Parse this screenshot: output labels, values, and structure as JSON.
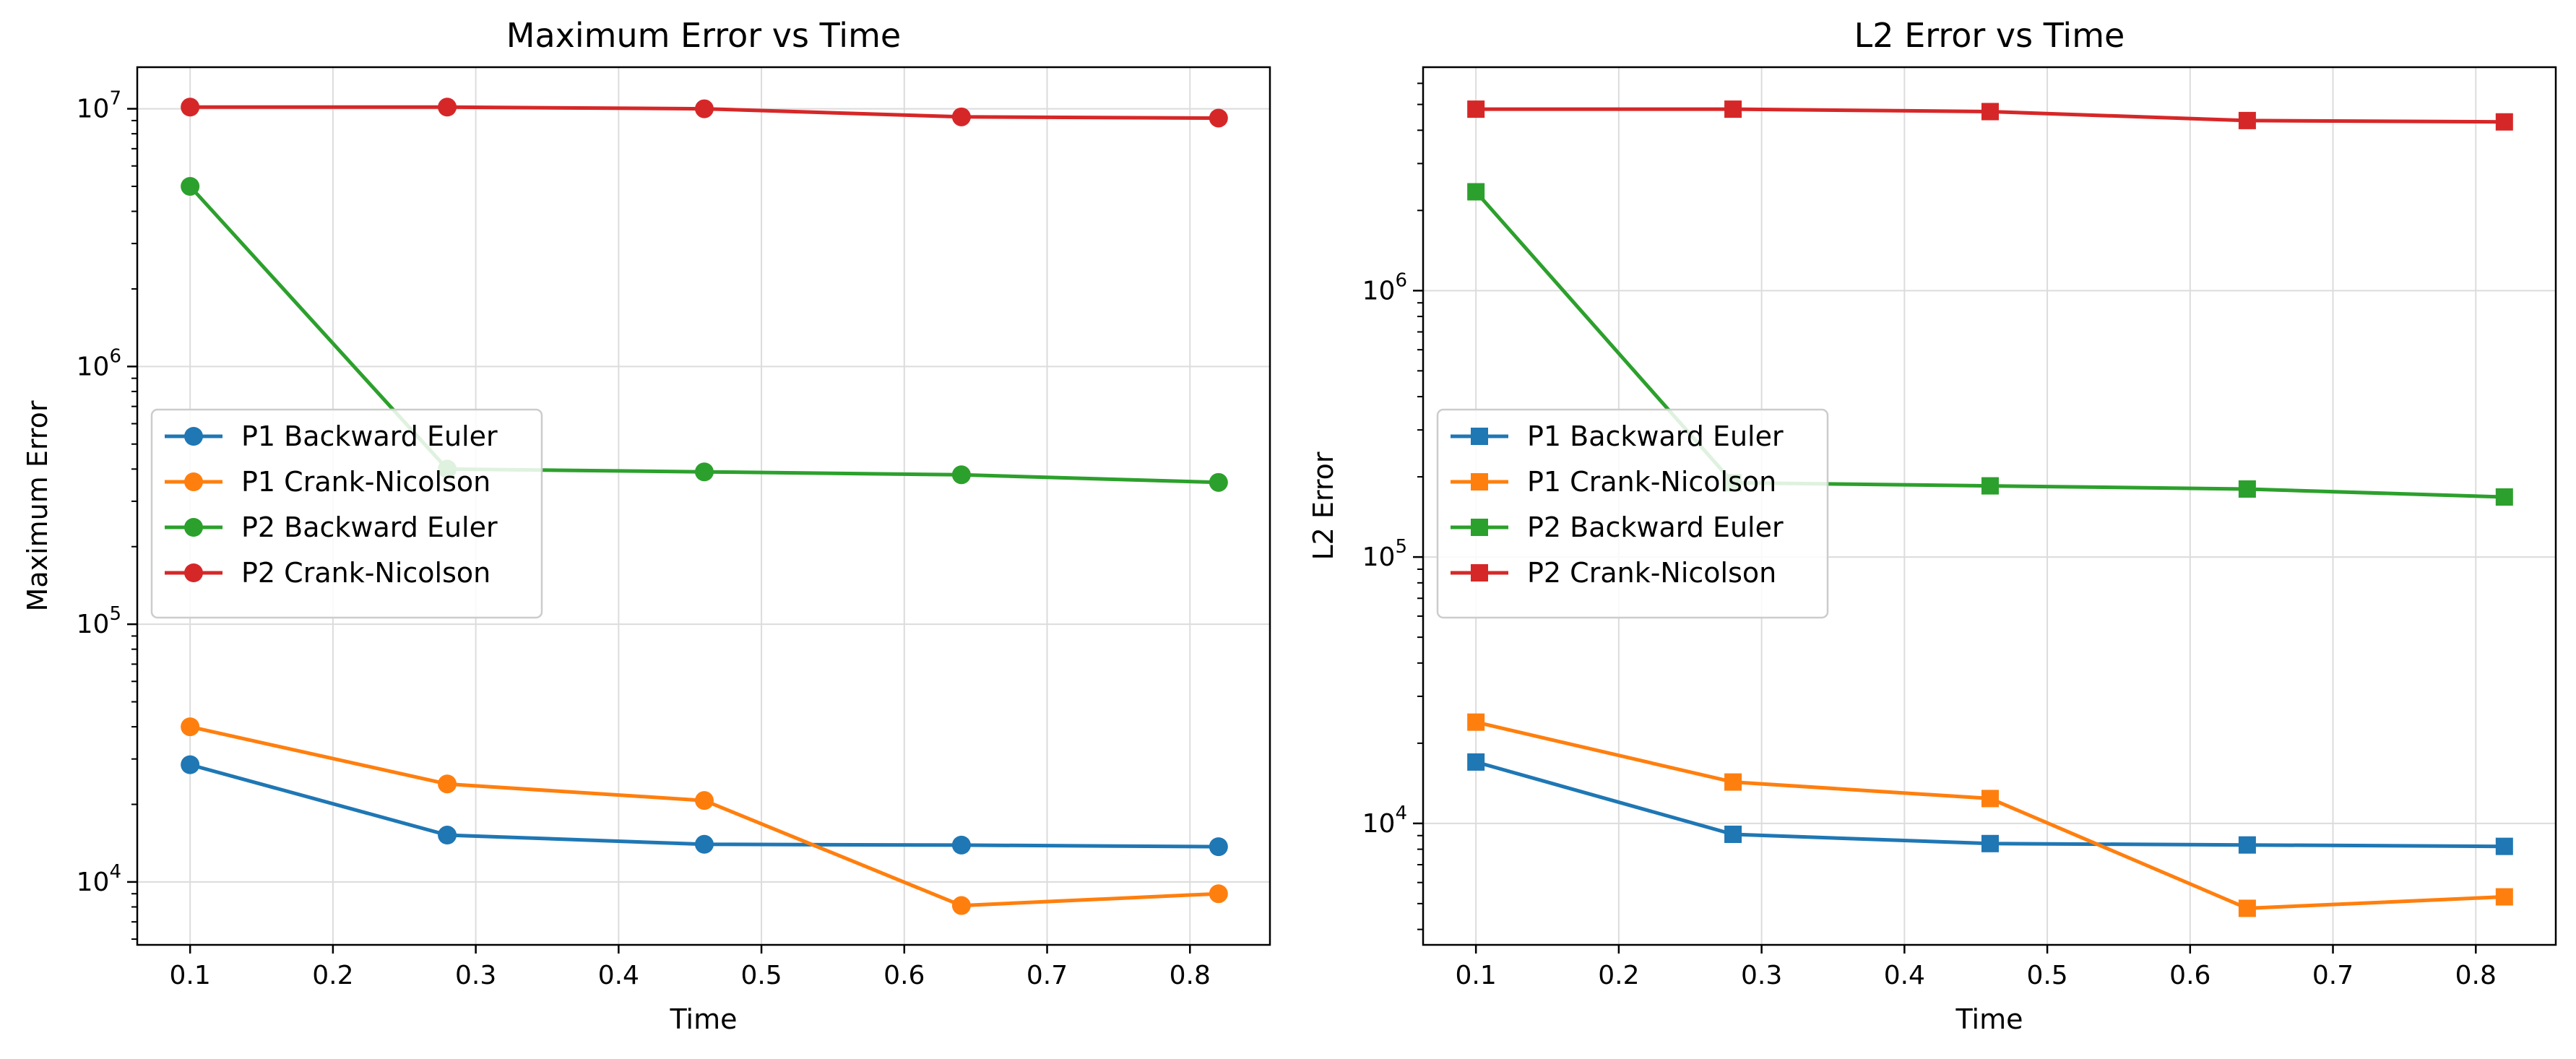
{
  "chart_data": [
    {
      "type": "line",
      "title": "Maximum Error vs Time",
      "xlabel": "Time",
      "ylabel": "Maximum Error",
      "yscale": "log",
      "xlim": [
        0.063,
        0.856
      ],
      "ylim": [
        5700,
        14500000
      ],
      "xticks": [
        "0.1",
        "0.2",
        "0.3",
        "0.4",
        "0.5",
        "0.6",
        "0.7",
        "0.8"
      ],
      "ymajor_ticks": [
        {
          "exp": "4",
          "value": 10000
        },
        {
          "exp": "5",
          "value": 100000
        },
        {
          "exp": "6",
          "value": 1000000
        },
        {
          "exp": "7",
          "value": 10000000
        }
      ],
      "grid": true,
      "legend_position": "center-left",
      "marker": "circle",
      "x": [
        0.1,
        0.28,
        0.46,
        0.64,
        0.82
      ],
      "series": [
        {
          "name": "P1 Backward Euler",
          "color": "#1f77b4",
          "values": [
            28500,
            15200,
            14000,
            13900,
            13700
          ]
        },
        {
          "name": "P1 Crank-Nicolson",
          "color": "#ff7f0e",
          "values": [
            40000,
            24000,
            20700,
            8100,
            9000
          ]
        },
        {
          "name": "P2 Backward Euler",
          "color": "#2ca02c",
          "values": [
            5000000,
            400000,
            390000,
            380000,
            355000
          ]
        },
        {
          "name": "P2 Crank-Nicolson",
          "color": "#d62728",
          "values": [
            10150000,
            10150000,
            10000000,
            9300000,
            9200000
          ]
        }
      ]
    },
    {
      "type": "line",
      "title": "L2 Error vs Time",
      "xlabel": "Time",
      "ylabel": "L2 Error",
      "yscale": "log",
      "xlim": [
        0.063,
        0.856
      ],
      "ylim": [
        3500,
        6900000
      ],
      "xticks": [
        "0.1",
        "0.2",
        "0.3",
        "0.4",
        "0.5",
        "0.6",
        "0.7",
        "0.8"
      ],
      "ymajor_ticks": [
        {
          "exp": "4",
          "value": 10000
        },
        {
          "exp": "5",
          "value": 100000
        },
        {
          "exp": "6",
          "value": 1000000
        }
      ],
      "grid": true,
      "legend_position": "center-left",
      "marker": "square",
      "x": [
        0.1,
        0.28,
        0.46,
        0.64,
        0.82
      ],
      "series": [
        {
          "name": "P1 Backward Euler",
          "color": "#1f77b4",
          "values": [
            17000,
            9100,
            8400,
            8300,
            8200
          ]
        },
        {
          "name": "P1 Crank-Nicolson",
          "color": "#ff7f0e",
          "values": [
            24000,
            14300,
            12400,
            4800,
            5300
          ]
        },
        {
          "name": "P2 Backward Euler",
          "color": "#2ca02c",
          "values": [
            2350000,
            190000,
            185000,
            180000,
            168000
          ]
        },
        {
          "name": "P2 Crank-Nicolson",
          "color": "#d62728",
          "values": [
            4800000,
            4800000,
            4700000,
            4350000,
            4300000
          ]
        }
      ]
    }
  ]
}
